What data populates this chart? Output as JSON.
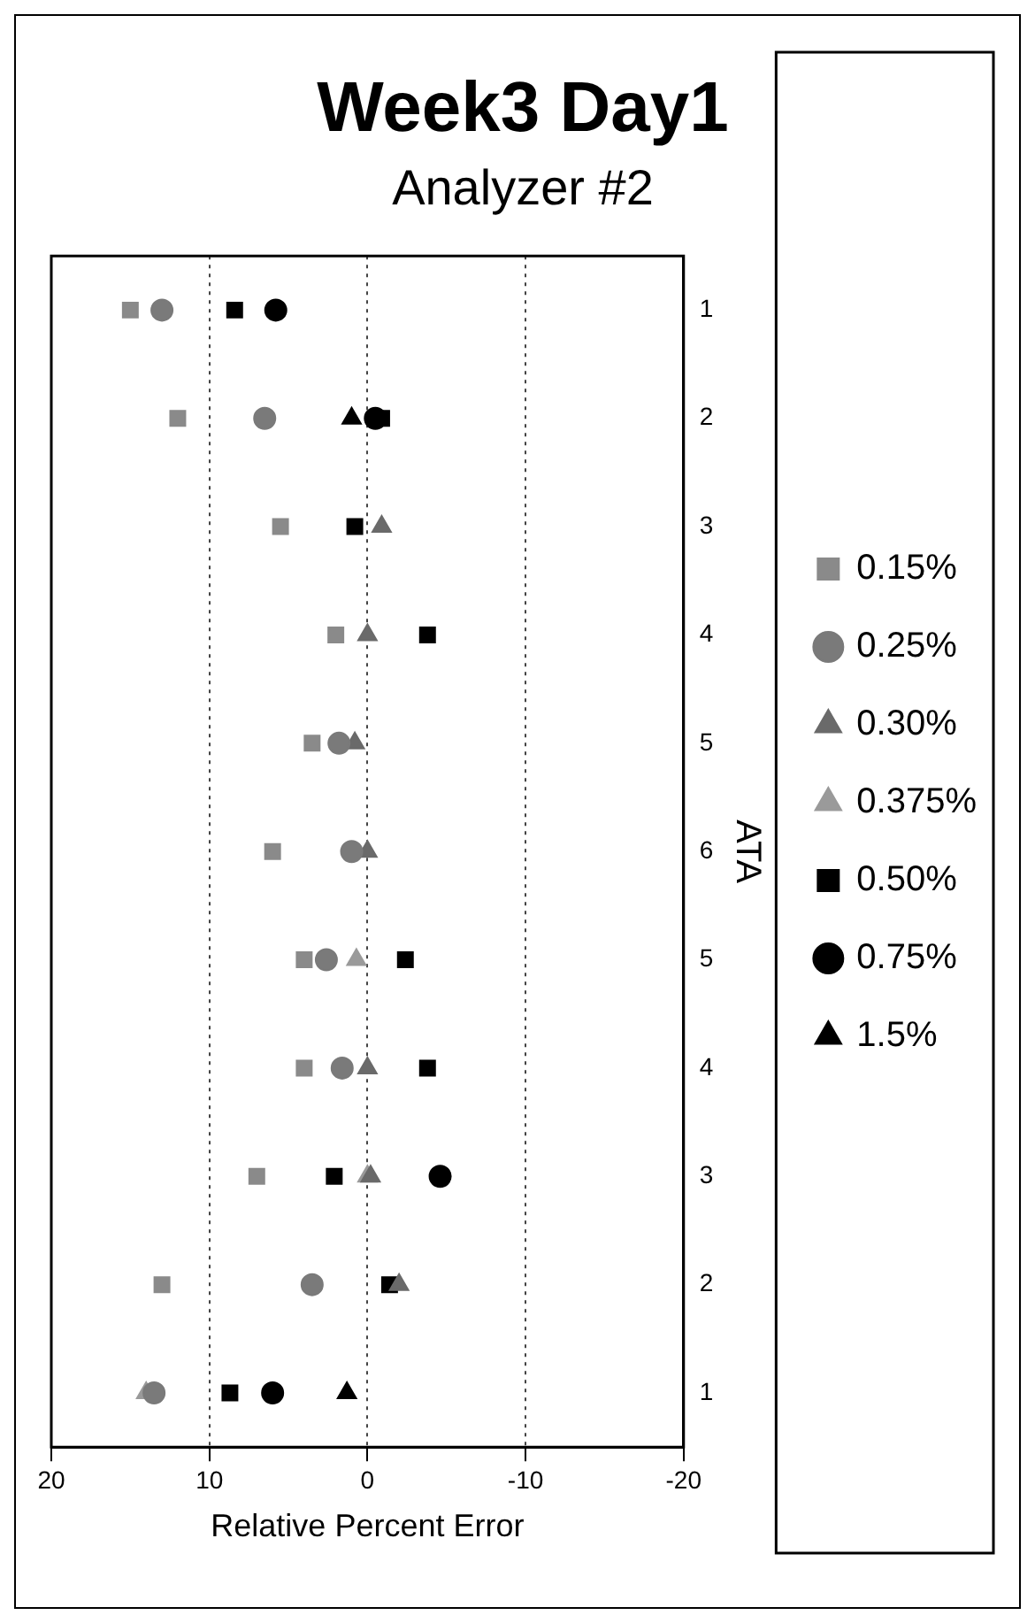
{
  "chart_data": {
    "type": "scatter",
    "title": "Week3 Day1",
    "subtitle": "Analyzer #2",
    "xlabel": "Relative Percent Error",
    "ylabel": "ATA",
    "orientation": "horizontal",
    "categories": [
      "1",
      "2",
      "3",
      "4",
      "5",
      "6",
      "5",
      "4",
      "3",
      "2",
      "1"
    ],
    "xlim": [
      20,
      -20
    ],
    "xticks": [
      20,
      10,
      0,
      -10,
      -20
    ],
    "grid": "x",
    "legend": "right",
    "series": [
      {
        "name": "0.15%",
        "color": "#8a8a8a",
        "marker": "square",
        "values": [
          15,
          12,
          5.5,
          2,
          3.5,
          6,
          4,
          4,
          7,
          13,
          null
        ]
      },
      {
        "name": "0.25%",
        "color": "#7a7a7a",
        "marker": "circle",
        "values": [
          13,
          6.5,
          null,
          null,
          1.8,
          1,
          2.6,
          1.6,
          null,
          3.5,
          13.5
        ]
      },
      {
        "name": "0.30%",
        "color": "#6a6a6a",
        "marker": "triangle",
        "values": [
          null,
          null,
          -0.9,
          0,
          0.8,
          0,
          null,
          0,
          -0.2,
          -2,
          null
        ]
      },
      {
        "name": "0.375%",
        "color": "#9a9a9a",
        "marker": "triangle",
        "values": [
          null,
          null,
          null,
          null,
          null,
          null,
          0.7,
          null,
          0,
          null,
          14
        ]
      },
      {
        "name": "0.50%",
        "color": "#000000",
        "marker": "square",
        "values": [
          8.4,
          -0.9,
          0.8,
          -3.8,
          null,
          null,
          -2.4,
          -3.8,
          2.1,
          -1.4,
          8.7
        ]
      },
      {
        "name": "0.75%",
        "color": "#000000",
        "marker": "circle",
        "values": [
          5.8,
          -0.5,
          null,
          null,
          null,
          null,
          null,
          null,
          -4.6,
          null,
          6
        ]
      },
      {
        "name": "1.5%",
        "color": "#000000",
        "marker": "triangle",
        "values": [
          null,
          1,
          null,
          null,
          null,
          null,
          null,
          null,
          null,
          null,
          1.3
        ]
      }
    ]
  }
}
